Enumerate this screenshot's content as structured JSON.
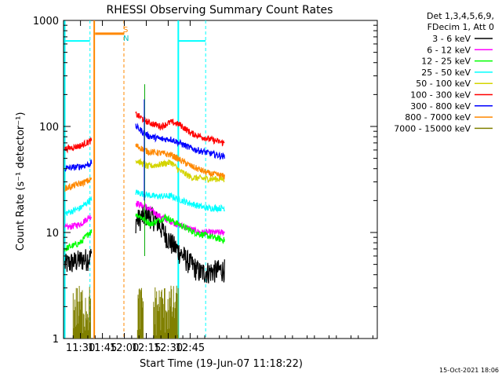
{
  "chart_data": {
    "type": "line",
    "title": "RHESSI Observing Summary Count Rates",
    "xlabel": "Start Time (19-Jun-07 11:18:22)",
    "ylabel": "Count Rate (s⁻¹ detector⁻¹)",
    "yscale": "log",
    "ylim": [
      1,
      1000
    ],
    "xlim_minutes_of_day": [
      678.4,
      893.0
    ],
    "x_ticks": [
      {
        "label": "11:30",
        "m": 690
      },
      {
        "label": "11:45",
        "m": 705
      },
      {
        "label": "12:00",
        "m": 720
      },
      {
        "label": "12:15",
        "m": 735
      },
      {
        "label": "12:30",
        "m": 750
      },
      {
        "label": "12:45",
        "m": 765
      }
    ],
    "y_ticks": [
      {
        "label": "1",
        "v": 1
      },
      {
        "label": "10",
        "v": 10
      },
      {
        "label": "100",
        "v": 100
      },
      {
        "label": "1000",
        "v": 1000
      }
    ],
    "legend_title": [
      "Det 1,3,4,5,6,9,",
      "FDecim 1, Att 0"
    ],
    "legend_position": "right",
    "series": [
      {
        "name": "3 - 6 keV",
        "color": "#000000",
        "pts": [
          [
            679,
            5.0
          ],
          [
            689,
            5.5
          ],
          [
            696,
            5.8
          ],
          [
            728,
            13
          ],
          [
            736,
            15
          ],
          [
            742,
            13
          ],
          [
            752,
            8
          ],
          [
            763,
            5.5
          ],
          [
            772,
            4.2
          ],
          [
            788,
            4.5
          ]
        ]
      },
      {
        "name": "6 - 12 keV",
        "color": "#ff00ff",
        "pts": [
          [
            679,
            11
          ],
          [
            690,
            12
          ],
          [
            696,
            14
          ],
          [
            728,
            19
          ],
          [
            736,
            17
          ],
          [
            745,
            14
          ],
          [
            756,
            12
          ],
          [
            772,
            10
          ],
          [
            788,
            10
          ]
        ]
      },
      {
        "name": "12 - 25 keV",
        "color": "#00ff00",
        "pts": [
          [
            679,
            7
          ],
          [
            690,
            8
          ],
          [
            696,
            10
          ],
          [
            728,
            15
          ],
          [
            738,
            12
          ],
          [
            748,
            14
          ],
          [
            757,
            12
          ],
          [
            768,
            10
          ],
          [
            788,
            8.5
          ]
        ]
      },
      {
        "name": "25 - 50 keV",
        "color": "#00ffff",
        "pts": [
          [
            679,
            15
          ],
          [
            690,
            17
          ],
          [
            696,
            20
          ],
          [
            728,
            24
          ],
          [
            740,
            22
          ],
          [
            752,
            22
          ],
          [
            764,
            19
          ],
          [
            776,
            17
          ],
          [
            788,
            17
          ]
        ]
      },
      {
        "name": "50 - 100 keV",
        "color": "#d4d400",
        "pts": [
          [
            728,
            48
          ],
          [
            736,
            42
          ],
          [
            745,
            44
          ],
          [
            752,
            46
          ],
          [
            758,
            38
          ],
          [
            766,
            33
          ],
          [
            778,
            32
          ],
          [
            788,
            32
          ]
        ]
      },
      {
        "name": "100 - 300 keV",
        "color": "#ff0000",
        "pts": [
          [
            679,
            61
          ],
          [
            690,
            66
          ],
          [
            696,
            72
          ],
          [
            728,
            130
          ],
          [
            736,
            110
          ],
          [
            745,
            100
          ],
          [
            752,
            110
          ],
          [
            758,
            104
          ],
          [
            766,
            86
          ],
          [
            778,
            76
          ],
          [
            788,
            70
          ]
        ]
      },
      {
        "name": "300 - 800 keV",
        "color": "#0000ff",
        "pts": [
          [
            679,
            40
          ],
          [
            690,
            42
          ],
          [
            696,
            44
          ],
          [
            728,
            100
          ],
          [
            736,
            82
          ],
          [
            745,
            76
          ],
          [
            752,
            76
          ],
          [
            766,
            62
          ],
          [
            778,
            56
          ],
          [
            788,
            52
          ]
        ]
      },
      {
        "name": "800 - 7000 keV",
        "color": "#ff8800",
        "pts": [
          [
            679,
            26
          ],
          [
            690,
            29
          ],
          [
            696,
            31
          ],
          [
            728,
            66
          ],
          [
            736,
            58
          ],
          [
            745,
            56
          ],
          [
            752,
            54
          ],
          [
            766,
            42
          ],
          [
            778,
            36
          ],
          [
            788,
            34
          ]
        ]
      },
      {
        "name": "7000 - 15000 keV",
        "color": "#808000",
        "pts": [
          [
            685,
            2.5
          ],
          [
            697,
            2.6
          ],
          [
            729,
            2.3
          ],
          [
            752,
            2.8
          ]
        ]
      }
    ],
    "annotations": [
      {
        "label": "S",
        "color": "#ff8800"
      },
      {
        "label": "N",
        "color": "#00ffff"
      }
    ],
    "footer_date": "15-Oct-2021 18:06"
  }
}
